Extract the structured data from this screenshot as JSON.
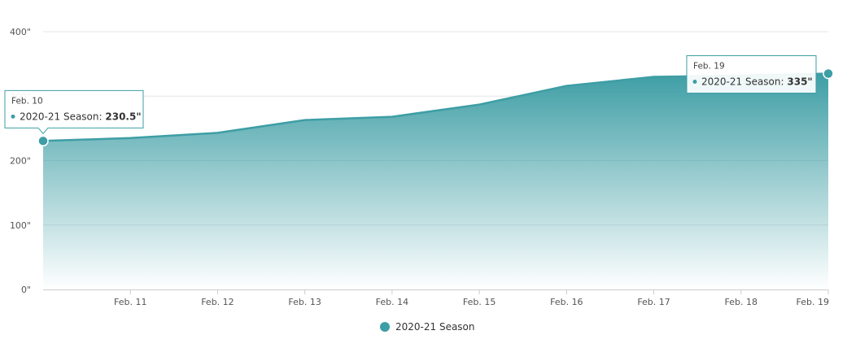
{
  "chart_data": {
    "type": "area",
    "title": "",
    "xlabel": "",
    "ylabel": "",
    "x": [
      "Feb. 10",
      "Feb. 11",
      "Feb. 12",
      "Feb. 13",
      "Feb. 14",
      "Feb. 15",
      "Feb. 16",
      "Feb. 17",
      "Feb. 18",
      "Feb. 19"
    ],
    "x_tick_labels": [
      "Feb. 11",
      "Feb. 12",
      "Feb. 13",
      "Feb. 14",
      "Feb. 15",
      "Feb. 16",
      "Feb. 17",
      "Feb. 18",
      "Feb. 19"
    ],
    "series": [
      {
        "name": "2020-21 Season",
        "values": [
          230.5,
          235,
          243,
          263,
          268,
          287,
          316,
          330,
          332,
          335
        ]
      }
    ],
    "y_ticks": [
      {
        "value": 0,
        "label": "0\""
      },
      {
        "value": 100,
        "label": "100\""
      },
      {
        "value": 200,
        "label": "200\""
      },
      {
        "value": 300,
        "label": "300\""
      },
      {
        "value": 400,
        "label": "400\""
      }
    ],
    "ylim": [
      0,
      400
    ],
    "grid": true,
    "legend": {
      "position": "bottom-center",
      "entries": [
        "2020-21 Season"
      ]
    },
    "colors": {
      "series": "#3e9ea5",
      "fill_top": "#3e9ea5",
      "grid": "#e6e6e6",
      "axis": "#cccccc"
    },
    "tooltips": [
      {
        "date": "Feb. 10",
        "series_label": "2020-21 Season: ",
        "value_label": "230.5\"",
        "point_index": 0
      },
      {
        "date": "Feb. 19",
        "series_label": "2020-21 Season: ",
        "value_label": "335\"",
        "point_index": 9
      }
    ]
  }
}
